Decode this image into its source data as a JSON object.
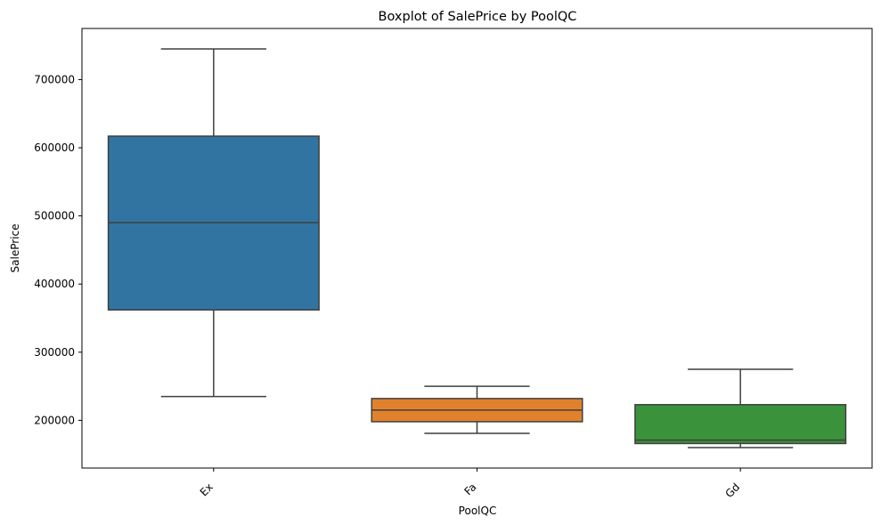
{
  "chart_data": {
    "type": "box",
    "title": "Boxplot of SalePrice by PoolQC",
    "xlabel": "PoolQC",
    "ylabel": "SalePrice",
    "categories": [
      "Ex",
      "Fa",
      "Gd"
    ],
    "ylim": [
      130000,
      775000
    ],
    "yticks": [
      200000,
      300000,
      400000,
      500000,
      600000,
      700000
    ],
    "ytick_labels": [
      "200000",
      "300000",
      "400000",
      "500000",
      "600000",
      "700000"
    ],
    "xtick_rotation": 45,
    "grid": false,
    "legend": "none",
    "boxes": [
      {
        "category": "Ex",
        "whisker_low": 235000,
        "q1": 362000,
        "median": 490000,
        "q3": 617000,
        "whisker_high": 745000,
        "color": "#3274a1"
      },
      {
        "category": "Fa",
        "whisker_low": 181000,
        "q1": 198000,
        "median": 215000,
        "q3": 232000,
        "whisker_high": 250000,
        "color": "#e1812c"
      },
      {
        "category": "Gd",
        "whisker_low": 160000,
        "q1": 166000,
        "median": 171000,
        "q3": 223000,
        "whisker_high": 275000,
        "color": "#3a923a"
      }
    ]
  }
}
